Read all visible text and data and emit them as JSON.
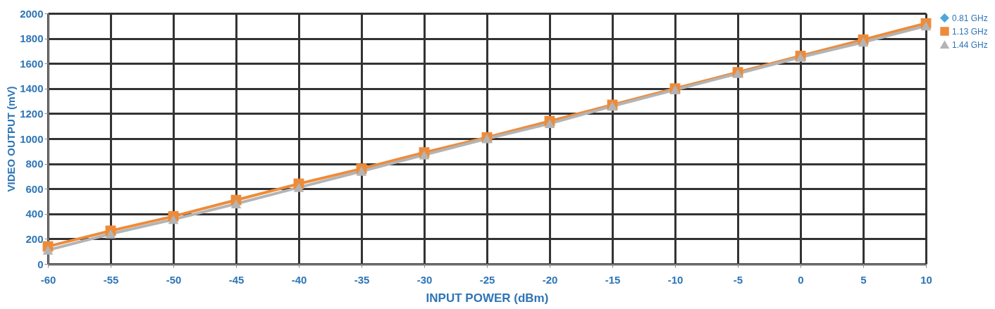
{
  "chart_data": {
    "type": "line",
    "xlabel": "INPUT POWER (dBm)",
    "ylabel": "VIDEO OUTPUT (mV)",
    "x": [
      -60,
      -55,
      -50,
      -45,
      -40,
      -35,
      -30,
      -25,
      -20,
      -15,
      -10,
      -5,
      0,
      5,
      10
    ],
    "series": [
      {
        "name": "0.81 GHz",
        "color": "#4ea6dc",
        "marker": "diamond",
        "values": [
          null,
          null,
          null,
          null,
          null,
          null,
          null,
          null,
          null,
          null,
          null,
          null,
          null,
          null,
          null
        ]
      },
      {
        "name": "1.13 GHz",
        "color": "#ed8b3a",
        "marker": "square",
        "values": [
          140,
          265,
          380,
          510,
          640,
          760,
          890,
          1010,
          1140,
          1270,
          1400,
          1530,
          1660,
          1790,
          1920
        ]
      },
      {
        "name": "1.44 GHz",
        "color": "#b4b4b4",
        "marker": "triangle",
        "values": [
          110,
          240,
          355,
          480,
          610,
          740,
          870,
          1000,
          1120,
          1260,
          1390,
          1520,
          1650,
          1770,
          1900
        ]
      }
    ],
    "xlim": [
      -60,
      10
    ],
    "xticks": [
      -60,
      -55,
      -50,
      -45,
      -40,
      -35,
      -30,
      -25,
      -20,
      -15,
      -10,
      -5,
      0,
      5,
      10
    ],
    "ylim": [
      0,
      2000
    ],
    "yticks": [
      0,
      200,
      400,
      600,
      800,
      1000,
      1200,
      1400,
      1600,
      1800,
      2000
    ],
    "grid": true,
    "legend": "right",
    "line_style": "solid"
  }
}
